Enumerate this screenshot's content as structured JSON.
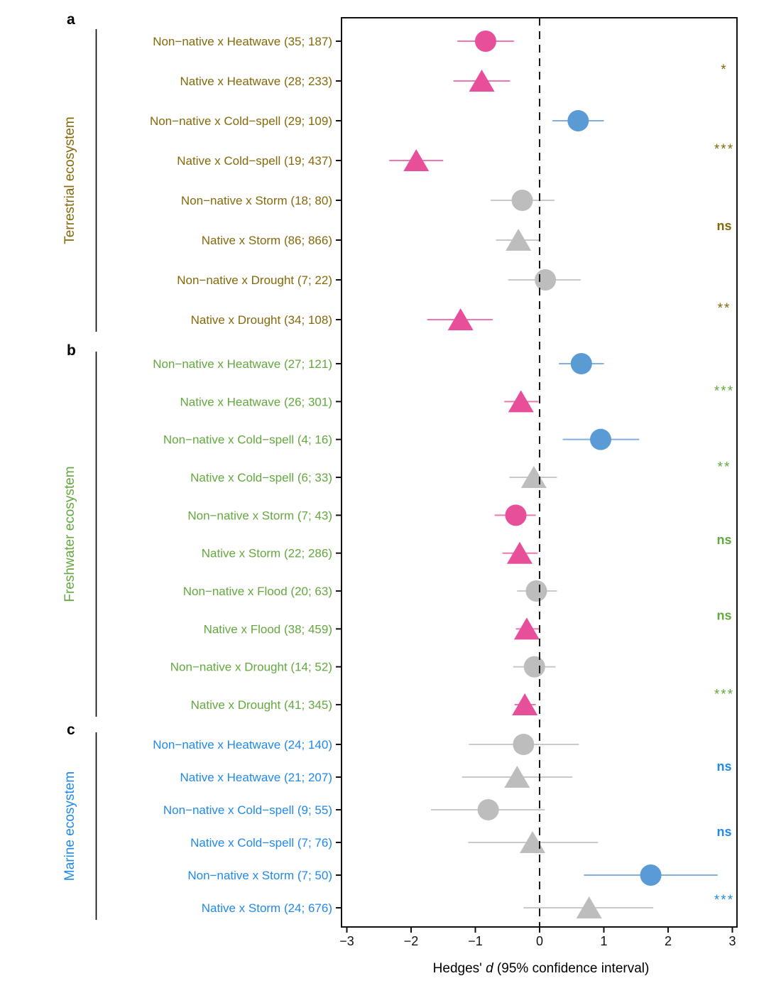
{
  "chart_data": {
    "type": "scatter",
    "variant": "forest-plot",
    "title": "",
    "xlabel_prefix": "Hedges'",
    "xlabel_italic": "d",
    "xlabel_suffix": "(95% confidence interval)",
    "xlim": [
      -3.1,
      3.1
    ],
    "x_ticks": [
      -3,
      -2,
      -1,
      0,
      1,
      2,
      3
    ],
    "zero_line_x": 0,
    "grid": false,
    "legend": "none",
    "marker_colors": {
      "pink": "#e84f9b",
      "blue": "#5b9bd5",
      "gray": "#bdbdbd"
    },
    "ci_line_colors": {
      "pink": "#ee77b2",
      "blue": "#7fb0df",
      "gray": "#c9c9c9"
    },
    "axis_color": "#111111",
    "panels": [
      {
        "letter": "a",
        "ecosystem": "Terrestrial ecosystem",
        "color": "#84690b",
        "rows": [
          {
            "label": "Non−native x Heatwave (35; 187)",
            "shape": "circle",
            "color": "pink",
            "d": -0.84,
            "ci": [
              -1.28,
              -0.4
            ]
          },
          {
            "label": "Native x Heatwave (28; 233)",
            "shape": "triangle",
            "color": "pink",
            "d": -0.9,
            "ci": [
              -1.34,
              -0.46
            ]
          },
          {
            "label": "Non−native x Cold−spell (29; 109)",
            "shape": "circle",
            "color": "blue",
            "d": 0.6,
            "ci": [
              0.2,
              1.0
            ]
          },
          {
            "label": "Native x Cold−spell (19; 437)",
            "shape": "triangle",
            "color": "pink",
            "d": -1.92,
            "ci": [
              -2.34,
              -1.5
            ]
          },
          {
            "label": "Non−native x Storm (18; 80)",
            "shape": "circle",
            "color": "gray",
            "d": -0.27,
            "ci": [
              -0.76,
              0.23
            ]
          },
          {
            "label": "Native x Storm (86; 866)",
            "shape": "triangle",
            "color": "gray",
            "d": -0.33,
            "ci": [
              -0.68,
              0.01
            ]
          },
          {
            "label": "Non−native x Drought (7; 22)",
            "shape": "circle",
            "color": "gray",
            "d": 0.09,
            "ci": [
              -0.49,
              0.64
            ]
          },
          {
            "label": "Native x Drought (34; 108)",
            "shape": "triangle",
            "color": "pink",
            "d": -1.23,
            "ci": [
              -1.75,
              -0.73
            ]
          }
        ],
        "significance": [
          "*",
          "***",
          "ns",
          "**"
        ]
      },
      {
        "letter": "b",
        "ecosystem": "Freshwater ecosystem",
        "color": "#63a83f",
        "rows": [
          {
            "label": "Non−native x Heatwave (27; 121)",
            "shape": "circle",
            "color": "blue",
            "d": 0.65,
            "ci": [
              0.3,
              1.0
            ]
          },
          {
            "label": "Native x Heatwave (26; 301)",
            "shape": "triangle",
            "color": "pink",
            "d": -0.29,
            "ci": [
              -0.55,
              -0.02
            ]
          },
          {
            "label": "Non−native x Cold−spell (4; 16)",
            "shape": "circle",
            "color": "blue",
            "d": 0.95,
            "ci": [
              0.36,
              1.55
            ]
          },
          {
            "label": "Native x Cold−spell (6; 33)",
            "shape": "triangle",
            "color": "gray",
            "d": -0.09,
            "ci": [
              -0.47,
              0.27
            ]
          },
          {
            "label": "Non−native x Storm (7; 43)",
            "shape": "circle",
            "color": "pink",
            "d": -0.37,
            "ci": [
              -0.7,
              -0.06
            ]
          },
          {
            "label": "Native x Storm (22; 286)",
            "shape": "triangle",
            "color": "pink",
            "d": -0.31,
            "ci": [
              -0.58,
              -0.03
            ]
          },
          {
            "label": "Non−native x Flood (20; 63)",
            "shape": "circle",
            "color": "gray",
            "d": -0.05,
            "ci": [
              -0.35,
              0.27
            ]
          },
          {
            "label": "Native x Flood (38; 459)",
            "shape": "triangle",
            "color": "pink",
            "d": -0.2,
            "ci": [
              -0.37,
              -0.01
            ]
          },
          {
            "label": "Non−native x Drought (14; 52)",
            "shape": "circle",
            "color": "gray",
            "d": -0.08,
            "ci": [
              -0.41,
              0.25
            ]
          },
          {
            "label": "Native x Drought (41; 345)",
            "shape": "triangle",
            "color": "pink",
            "d": -0.23,
            "ci": [
              -0.39,
              -0.06
            ]
          }
        ],
        "significance": [
          "***",
          "**",
          "ns",
          "ns",
          "***"
        ]
      },
      {
        "letter": "c",
        "ecosystem": "Marine ecosystem",
        "color": "#2189ea",
        "rows": [
          {
            "label": "Non−native x Heatwave (24; 140)",
            "shape": "circle",
            "color": "gray",
            "d": -0.25,
            "ci": [
              -1.1,
              0.61
            ]
          },
          {
            "label": "Native x Heatwave (21; 207)",
            "shape": "triangle",
            "color": "gray",
            "d": -0.35,
            "ci": [
              -1.21,
              0.51
            ]
          },
          {
            "label": "Non−native x Cold−spell (9; 55)",
            "shape": "circle",
            "color": "gray",
            "d": -0.8,
            "ci": [
              -1.69,
              0.08
            ]
          },
          {
            "label": "Native x Cold−spell (7; 76)",
            "shape": "triangle",
            "color": "gray",
            "d": -0.11,
            "ci": [
              -1.11,
              0.91
            ]
          },
          {
            "label": "Non−native x Storm (7; 50)",
            "shape": "circle",
            "color": "blue",
            "d": 1.73,
            "ci": [
              0.69,
              2.77
            ]
          },
          {
            "label": "Native x Storm (24; 676)",
            "shape": "triangle",
            "color": "gray",
            "d": 0.77,
            "ci": [
              -0.25,
              1.77
            ]
          }
        ],
        "significance": [
          "ns",
          "ns",
          "***"
        ]
      }
    ]
  }
}
